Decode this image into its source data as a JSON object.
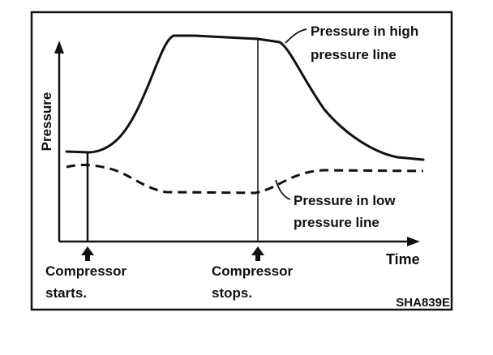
{
  "figure": {
    "axis_labels": {
      "y": "Pressure",
      "x": "Time"
    },
    "high_line_label": [
      "Pressure in high",
      "pressure line"
    ],
    "low_line_label": [
      "Pressure in low",
      "pressure line"
    ],
    "event_labels": {
      "start": [
        "Compressor",
        "starts."
      ],
      "stop": [
        "Compressor",
        "stops."
      ]
    },
    "figure_code": "SHA839E"
  }
}
